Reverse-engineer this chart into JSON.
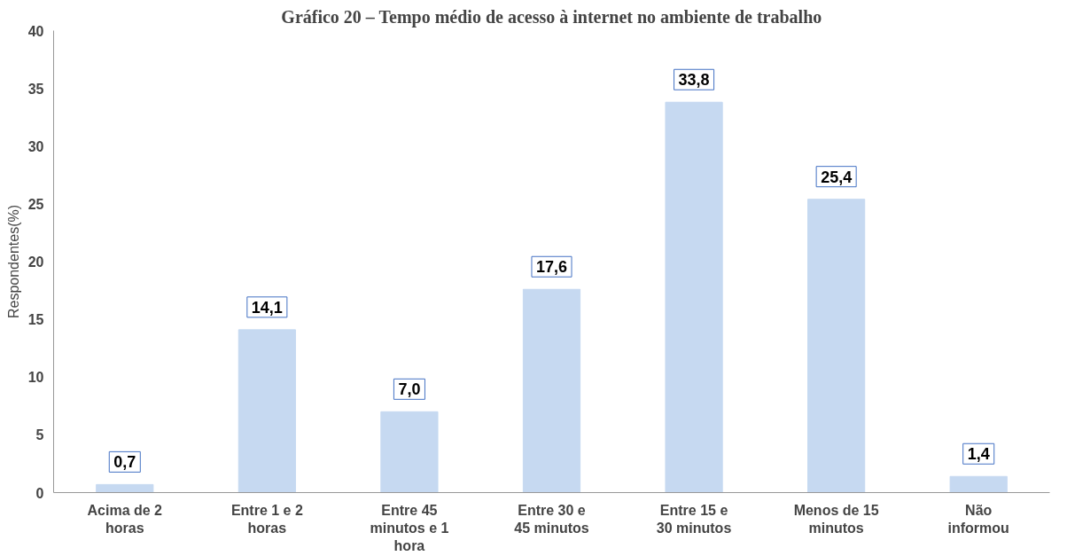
{
  "chart_data": {
    "type": "bar",
    "title": "Gráfico 20 – Tempo médio de acesso à internet no ambiente de trabalho",
    "ylabel": "Respondentes(%)",
    "categories": [
      "Acima de 2 horas",
      "Entre 1 e 2 horas",
      "Entre 45 minutos e 1 hora",
      "Entre 30 e 45 minutos",
      "Entre 15 e 30 minutos",
      "Menos de 15 minutos",
      "Não informou"
    ],
    "values": [
      0.7,
      14.1,
      7.0,
      17.6,
      33.8,
      25.4,
      1.4
    ],
    "value_labels": [
      "0,7",
      "14,1",
      "7,0",
      "17,6",
      "33,8",
      "25,4",
      "1,4"
    ],
    "color": "#c6d9f1",
    "ylim": [
      0,
      40
    ],
    "yticks": [
      0,
      5,
      10,
      15,
      20,
      25,
      30,
      35,
      40
    ],
    "grid": false
  }
}
